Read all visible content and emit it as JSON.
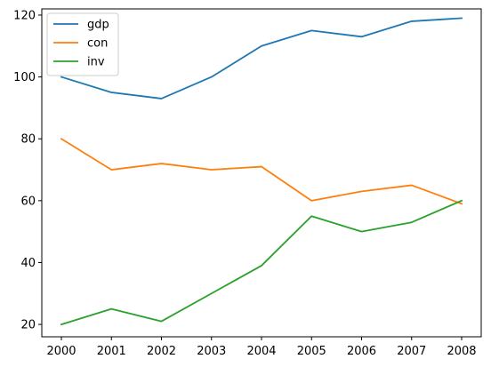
{
  "chart_data": {
    "type": "line",
    "title": "",
    "xlabel": "",
    "ylabel": "",
    "x": [
      2000,
      2001,
      2002,
      2003,
      2004,
      2005,
      2006,
      2007,
      2008
    ],
    "xticks": [
      "2000",
      "2001",
      "2002",
      "2003",
      "2004",
      "2005",
      "2006",
      "2007",
      "2008"
    ],
    "yticks": [
      "20",
      "40",
      "60",
      "80",
      "100",
      "120"
    ],
    "ylim": [
      16,
      122
    ],
    "grid": false,
    "legend_position": "top-left",
    "series": [
      {
        "name": "gdp",
        "color": "#1f77b4",
        "values": [
          100,
          95,
          93,
          100,
          110,
          115,
          113,
          118,
          119
        ]
      },
      {
        "name": "con",
        "color": "#ff7f0e",
        "values": [
          80,
          70,
          72,
          70,
          71,
          60,
          63,
          65,
          59
        ]
      },
      {
        "name": "inv",
        "color": "#2ca02c",
        "values": [
          20,
          25,
          21,
          30,
          39,
          55,
          50,
          53,
          60
        ]
      }
    ]
  }
}
